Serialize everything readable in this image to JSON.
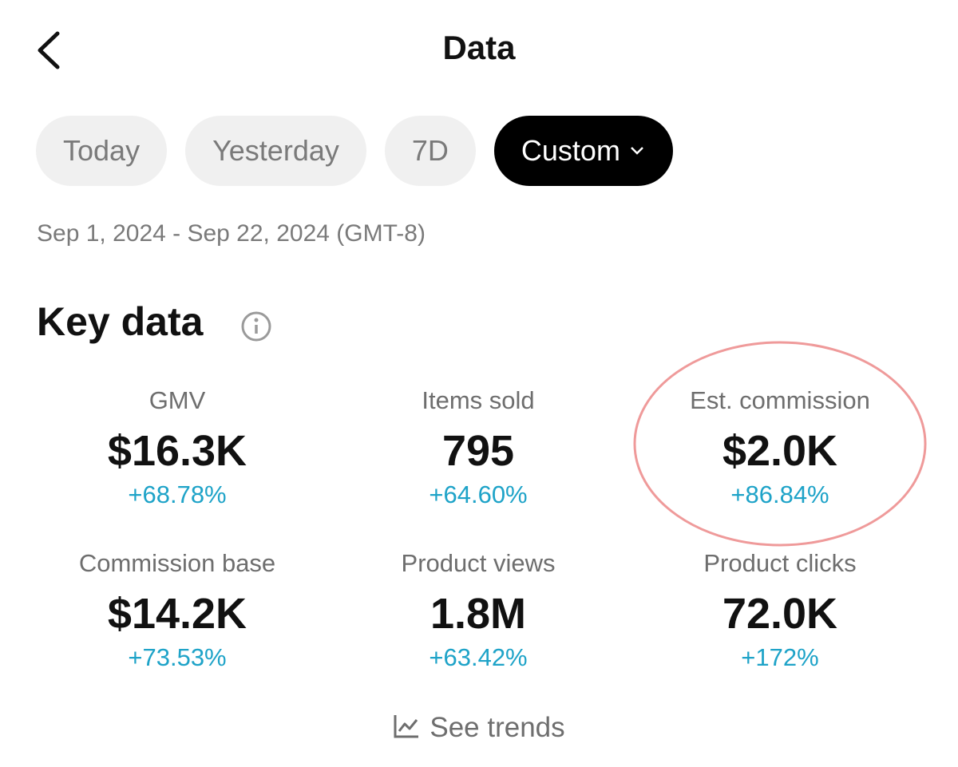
{
  "header": {
    "title": "Data"
  },
  "tabs": {
    "items": [
      "Today",
      "Yesterday",
      "7D",
      "Custom"
    ],
    "active": 3
  },
  "date_range": "Sep 1, 2024 - Sep 22, 2024 (GMT-8)",
  "section": {
    "title": "Key data"
  },
  "metrics": [
    {
      "label": "GMV",
      "value": "$16.3K",
      "change": "+68.78%"
    },
    {
      "label": "Items sold",
      "value": "795",
      "change": "+64.60%"
    },
    {
      "label": "Est. commission",
      "value": "$2.0K",
      "change": "+86.84%"
    },
    {
      "label": "Commission base",
      "value": "$14.2K",
      "change": "+73.53%"
    },
    {
      "label": "Product views",
      "value": "1.8M",
      "change": "+63.42%"
    },
    {
      "label": "Product clicks",
      "value": "72.0K",
      "change": "+172%"
    }
  ],
  "highlighted_metric": 2,
  "link": "See trends"
}
